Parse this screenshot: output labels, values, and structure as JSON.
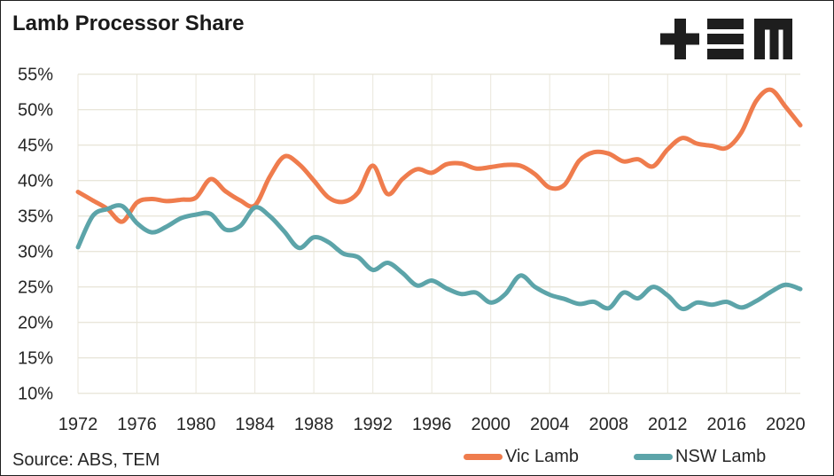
{
  "title": "Lamb Processor Share",
  "source": "Source: ABS, TEM",
  "logo": {
    "name": "TEM",
    "color": "#1e1e1e"
  },
  "colors": {
    "vic_orange": "#EF7C4D",
    "nsw_teal": "#5CA4A9",
    "grid": "#E9E6DA",
    "text": "#262626",
    "title": "#1a1a1a"
  },
  "legend": [
    {
      "label": "Vic Lamb",
      "color": "#EF7C4D"
    },
    {
      "label": "NSW Lamb",
      "color": "#5CA4A9"
    }
  ],
  "chart_data": {
    "type": "line",
    "title": "Lamb Processor Share",
    "xlabel": "",
    "ylabel": "",
    "ylim": [
      10,
      55
    ],
    "grid": true,
    "legend_position": "bottom",
    "ytick_values": [
      55,
      50,
      45,
      40,
      35,
      30,
      25,
      20,
      15,
      10
    ],
    "ytick_labels": [
      "55%",
      "50%",
      "45%",
      "40%",
      "35%",
      "30%",
      "25%",
      "20%",
      "15%",
      "10%"
    ],
    "xtick_values": [
      1972,
      1976,
      1980,
      1984,
      1988,
      1992,
      1996,
      2000,
      2004,
      2008,
      2012,
      2016,
      2020
    ],
    "xtick_labels": [
      "1972",
      "1976",
      "1980",
      "1984",
      "1988",
      "1992",
      "1996",
      "2000",
      "2004",
      "2008",
      "2012",
      "2016",
      "2020"
    ],
    "x": [
      1972,
      1973,
      1974,
      1975,
      1976,
      1977,
      1978,
      1979,
      1980,
      1981,
      1982,
      1983,
      1984,
      1985,
      1986,
      1987,
      1988,
      1989,
      1990,
      1991,
      1992,
      1993,
      1994,
      1995,
      1996,
      1997,
      1998,
      1999,
      2000,
      2001,
      2002,
      2003,
      2004,
      2005,
      2006,
      2007,
      2008,
      2009,
      2010,
      2011,
      2012,
      2013,
      2014,
      2015,
      2016,
      2017,
      2018,
      2019,
      2020,
      2021
    ],
    "series": [
      {
        "name": "Vic Lamb",
        "color": "#EF7C4D",
        "values": [
          38.4,
          37.2,
          36.0,
          34.2,
          36.9,
          37.4,
          37.1,
          37.3,
          37.6,
          40.2,
          38.5,
          37.2,
          36.5,
          40.5,
          43.4,
          42.3,
          40.0,
          37.6,
          37.0,
          38.3,
          42.1,
          38.1,
          40.2,
          41.6,
          41.1,
          42.3,
          42.4,
          41.7,
          41.9,
          42.2,
          42.1,
          40.9,
          39.0,
          39.4,
          42.8,
          44.0,
          43.8,
          42.7,
          43.0,
          42.0,
          44.4,
          46.0,
          45.2,
          44.9,
          44.6,
          46.8,
          51.2,
          52.8,
          50.4,
          47.8
        ]
      },
      {
        "name": "NSW Lamb",
        "color": "#5CA4A9",
        "values": [
          30.6,
          35.0,
          36.0,
          36.4,
          34.0,
          32.7,
          33.5,
          34.7,
          35.2,
          35.3,
          33.1,
          33.6,
          36.2,
          35.0,
          32.8,
          30.5,
          32.0,
          31.3,
          29.7,
          29.2,
          27.4,
          28.4,
          27.0,
          25.2,
          25.9,
          24.8,
          24.0,
          24.2,
          22.8,
          24.0,
          26.6,
          25.0,
          23.9,
          23.3,
          22.6,
          22.9,
          22.0,
          24.2,
          23.4,
          25.0,
          23.8,
          21.9,
          22.8,
          22.5,
          22.9,
          22.1,
          23.0,
          24.3,
          25.3,
          24.7
        ]
      }
    ]
  }
}
